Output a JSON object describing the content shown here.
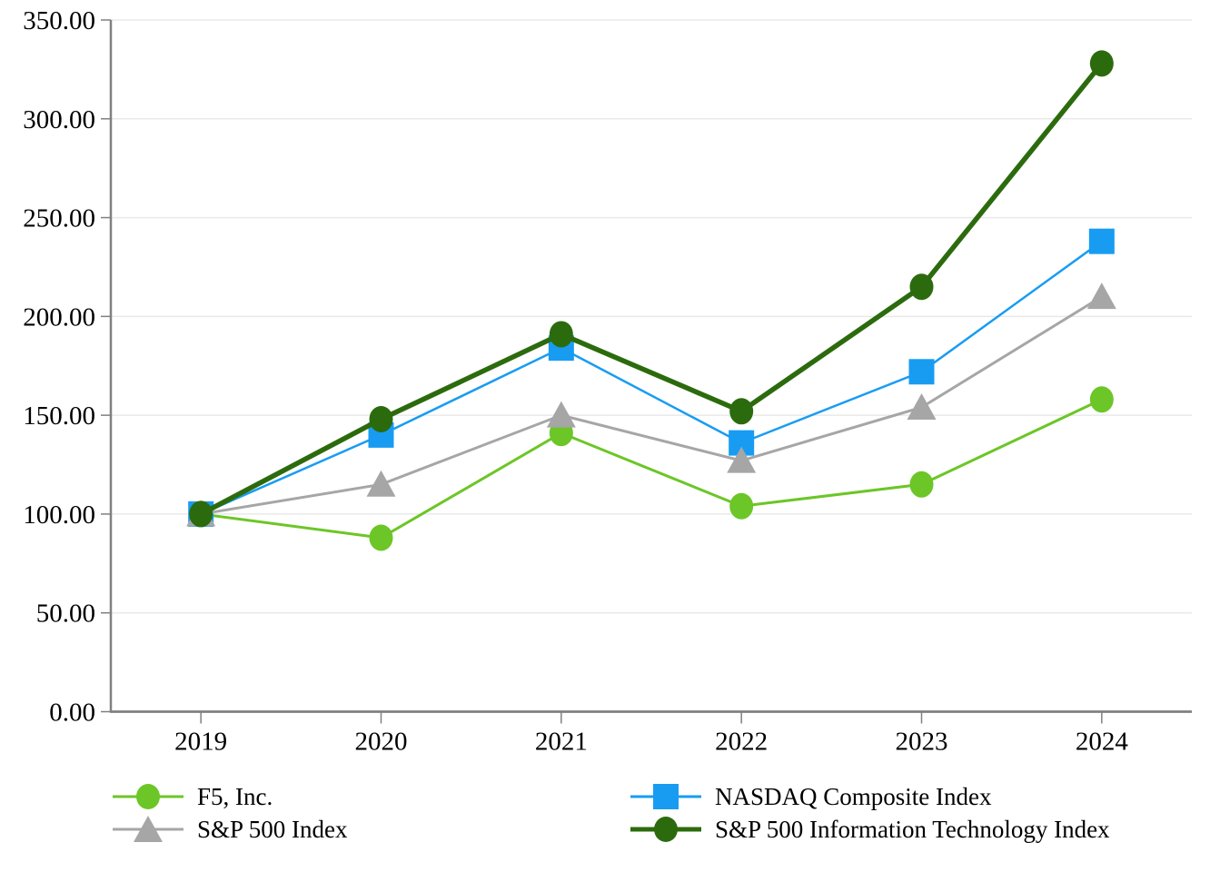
{
  "chart_data": {
    "type": "line",
    "title": "",
    "x_categories": [
      "2019",
      "2020",
      "2021",
      "2022",
      "2023",
      "2024"
    ],
    "y_axis": {
      "min": 0,
      "max": 350,
      "step": 50,
      "tick_labels": [
        "0.00",
        "50.00",
        "100.00",
        "150.00",
        "200.00",
        "250.00",
        "300.00",
        "350.00"
      ]
    },
    "grid": "horizontal gridlines",
    "legend_position": "bottom, two columns",
    "series": [
      {
        "name": "F5, Inc.",
        "marker": "circle",
        "color": "#6CC627",
        "values": [
          100,
          88,
          141,
          104,
          115,
          158
        ]
      },
      {
        "name": "NASDAQ Composite Index",
        "marker": "square",
        "color": "#189CF2",
        "values": [
          100,
          140,
          184,
          136,
          172,
          238
        ]
      },
      {
        "name": "S&P 500 Index",
        "marker": "triangle",
        "color": "#A6A6A6",
        "values": [
          100,
          115,
          150,
          127,
          154,
          210
        ]
      },
      {
        "name": "S&P 500 Information Technology Index",
        "marker": "circle",
        "color": "#2C6B0D",
        "values": [
          100,
          148,
          191,
          152,
          215,
          328
        ]
      }
    ],
    "colors": {
      "gridline": "#E9E9E9",
      "axis": "#808080",
      "text": "#000000",
      "background": "#FFFFFF"
    }
  }
}
